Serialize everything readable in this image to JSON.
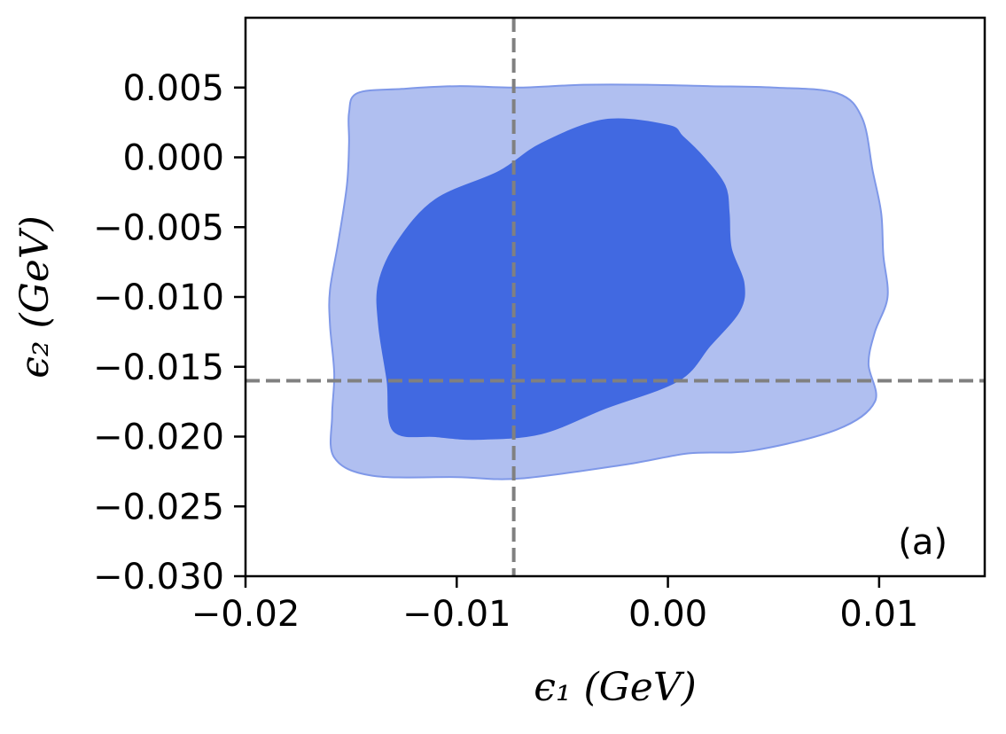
{
  "chart_data": {
    "type": "contour",
    "panel_label": "(a)",
    "xlabel": "ϵ₁ (GeV)",
    "ylabel": "ϵ₂ (GeV)",
    "xlim": [
      -0.02,
      0.015
    ],
    "ylim": [
      -0.03,
      0.01
    ],
    "xticks": [
      -0.02,
      -0.01,
      0.0,
      0.01
    ],
    "xtick_labels": [
      "−0.02",
      "−0.01",
      "0.00",
      "0.01"
    ],
    "yticks": [
      0.005,
      0.0,
      -0.005,
      -0.01,
      -0.015,
      -0.02,
      -0.025,
      -0.03
    ],
    "ytick_labels": [
      "0.005",
      "0.000",
      "−0.005",
      "−0.010",
      "−0.015",
      "−0.020",
      "−0.025",
      "−0.030"
    ],
    "reference_lines": {
      "x": -0.0073,
      "y": -0.016
    },
    "colors": {
      "inner": "#4169e1",
      "outer": "#b0bff0",
      "outer_edge": "#7f98e8",
      "reference": "#808080"
    },
    "regions": [
      {
        "level": "outer",
        "points": [
          [
            -0.0147,
            0.0046
          ],
          [
            -0.0126,
            0.0049
          ],
          [
            -0.01,
            0.0051
          ],
          [
            -0.007,
            0.005
          ],
          [
            -0.004,
            0.0052
          ],
          [
            -0.001,
            0.0052
          ],
          [
            0.002,
            0.0051
          ],
          [
            0.005,
            0.005
          ],
          [
            0.008,
            0.0046
          ],
          [
            0.0092,
            0.0028
          ],
          [
            0.0097,
            -0.001
          ],
          [
            0.0101,
            -0.004
          ],
          [
            0.0102,
            -0.007
          ],
          [
            0.0104,
            -0.01
          ],
          [
            0.0098,
            -0.0125
          ],
          [
            0.0095,
            -0.0148
          ],
          [
            0.0098,
            -0.0175
          ],
          [
            0.008,
            -0.0195
          ],
          [
            0.004,
            -0.021
          ],
          [
            0.001,
            -0.0212
          ],
          [
            -0.002,
            -0.022
          ],
          [
            -0.007,
            -0.023
          ],
          [
            -0.01,
            -0.0229
          ],
          [
            -0.014,
            -0.0228
          ],
          [
            -0.0158,
            -0.0215
          ],
          [
            -0.0159,
            -0.0185
          ],
          [
            -0.0158,
            -0.0155
          ],
          [
            -0.016,
            -0.012
          ],
          [
            -0.016,
            -0.0095
          ],
          [
            -0.0156,
            -0.006
          ],
          [
            -0.0152,
            -0.002
          ],
          [
            -0.0151,
            0.001
          ],
          [
            -0.0151,
            0.0032
          ]
        ]
      },
      {
        "level": "inner",
        "points": [
          [
            -0.003,
            0.0027
          ],
          [
            0.0,
            0.0023
          ],
          [
            0.0007,
            0.0015
          ],
          [
            0.0017,
            0.0
          ],
          [
            0.0027,
            -0.002
          ],
          [
            0.0029,
            -0.004
          ],
          [
            0.003,
            -0.0065
          ],
          [
            0.0036,
            -0.009
          ],
          [
            0.0034,
            -0.011
          ],
          [
            0.002,
            -0.0135
          ],
          [
            0.0005,
            -0.016
          ],
          [
            -0.003,
            -0.018
          ],
          [
            -0.006,
            -0.0198
          ],
          [
            -0.009,
            -0.0202
          ],
          [
            -0.011,
            -0.02
          ],
          [
            -0.013,
            -0.0196
          ],
          [
            -0.0133,
            -0.016
          ],
          [
            -0.0137,
            -0.012
          ],
          [
            -0.0137,
            -0.009
          ],
          [
            -0.0128,
            -0.006
          ],
          [
            -0.011,
            -0.003
          ],
          [
            -0.008,
            -0.001
          ],
          [
            -0.006,
            0.001
          ]
        ]
      }
    ]
  }
}
